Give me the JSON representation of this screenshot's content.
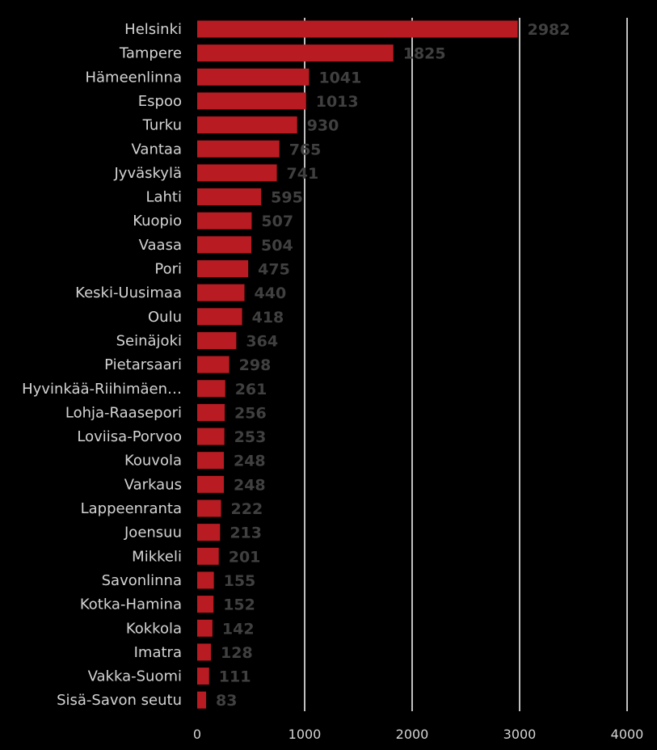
{
  "chart_data": {
    "type": "bar",
    "orientation": "horizontal",
    "categories": [
      "Helsinki",
      "Tampere",
      "Hämeenlinna",
      "Espoo",
      "Turku",
      "Vantaa",
      "Jyväskylä",
      "Lahti",
      "Kuopio",
      "Vaasa",
      "Pori",
      "Keski-Uusimaa",
      "Oulu",
      "Seinäjoki",
      "Pietarsaari",
      "Hyvinkää-Riihimäen…",
      "Lohja-Raasepori",
      "Loviisa-Porvoo",
      "Kouvola",
      "Varkaus",
      "Lappeenranta",
      "Joensuu",
      "Mikkeli",
      "Savonlinna",
      "Kotka-Hamina",
      "Kokkola",
      "Imatra",
      "Vakka-Suomi",
      "Sisä-Savon seutu"
    ],
    "values": [
      2982,
      1825,
      1041,
      1013,
      930,
      765,
      741,
      595,
      507,
      504,
      475,
      440,
      418,
      364,
      298,
      261,
      256,
      253,
      248,
      248,
      222,
      213,
      201,
      155,
      152,
      142,
      128,
      111,
      83
    ],
    "value_labels": [
      "2982",
      "1825",
      "1041",
      "1013",
      "930",
      "765",
      "741",
      "595",
      "507",
      "504",
      "475",
      "440",
      "418",
      "364",
      "298",
      "261",
      "256",
      "253",
      "248",
      "248",
      "222",
      "213",
      "201",
      "155",
      "152",
      "142",
      "128",
      "111",
      "83"
    ],
    "xlim": [
      0,
      4000
    ],
    "xticks": [
      0,
      1000,
      2000,
      3000,
      4000
    ],
    "xtick_labels": [
      "0",
      "1000",
      "2000",
      "3000",
      "4000"
    ],
    "grid": true,
    "colors": {
      "background": "#000000",
      "bar": "#b81c22",
      "grid": "#ffffff",
      "category_text": "#d4d4d4",
      "value_text": "#404040"
    }
  }
}
